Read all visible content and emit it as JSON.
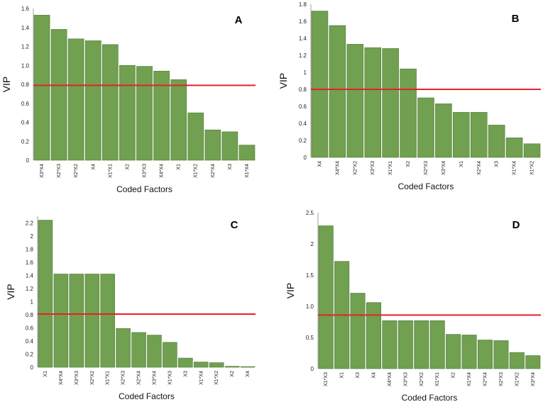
{
  "colors": {
    "bar": "#70a050",
    "bar_edge": "#4d7a33",
    "threshold": "#e8202a"
  },
  "chart_data": [
    {
      "type": "bar",
      "panel": "A",
      "xlabel": "Coded Factors",
      "ylabel": "VIP",
      "ylim": [
        0,
        1.6
      ],
      "yticks": [
        0,
        0.2,
        0.4,
        0.6,
        0.8,
        1.0,
        1.2,
        1.4,
        1.6
      ],
      "ytick_labels": [
        "0",
        "0.2",
        "0.4",
        "0.6",
        "0.8",
        "1.0",
        "1.2",
        "1.4",
        "1.6"
      ],
      "threshold": 0.79,
      "categories": [
        "X3*X4",
        "X2*X3",
        "X2*X2",
        "X4",
        "X1*X1",
        "X2",
        "X3*X3",
        "X4*X4",
        "X1",
        "X1*X2",
        "X2*X4",
        "X3",
        "X1*X4"
      ],
      "values": [
        1.53,
        1.38,
        1.28,
        1.26,
        1.22,
        1.0,
        0.99,
        0.94,
        0.85,
        0.5,
        0.32,
        0.3,
        0.16
      ]
    },
    {
      "type": "bar",
      "panel": "B",
      "xlabel": "Coded Factors",
      "ylabel": "VIP",
      "ylim": [
        0,
        1.8
      ],
      "yticks": [
        0,
        0.2,
        0.4,
        0.6,
        0.8,
        1,
        1.2,
        1.4,
        1.6,
        1.8
      ],
      "ytick_labels": [
        "0",
        "0.2",
        "0.4",
        "0.6",
        "0.8",
        "1",
        "1.2",
        "1.4",
        "1.6",
        "1.8"
      ],
      "threshold": 0.8,
      "categories": [
        "X4",
        "X4*X4",
        "X2*X2",
        "X3*X3",
        "X1*X1",
        "X2",
        "X2*X3",
        "X3*X4",
        "X1",
        "X2*X4",
        "X3",
        "X1*X4",
        "X1*X2"
      ],
      "values": [
        1.72,
        1.55,
        1.33,
        1.29,
        1.28,
        1.04,
        0.7,
        0.63,
        0.53,
        0.53,
        0.38,
        0.23,
        0.16
      ]
    },
    {
      "type": "bar",
      "panel": "C",
      "xlabel": "Coded Factors",
      "ylabel": "VIP",
      "ylim": [
        0,
        2.3
      ],
      "yticks": [
        0,
        0.2,
        0.4,
        0.6,
        0.8,
        1,
        1.2,
        1.4,
        1.6,
        1.8,
        2,
        2.2
      ],
      "ytick_labels": [
        "0",
        "0.2",
        "0.4",
        "0.6",
        "0.8",
        "1",
        "1.2",
        "1.4",
        "1.6",
        "1.8",
        "2",
        "2.2"
      ],
      "threshold": 0.81,
      "categories": [
        "X1",
        "X4*X4",
        "X3*X3",
        "X2*X2",
        "X1*X1",
        "X2*X3",
        "X2*X4",
        "X3*X4",
        "X1*X3",
        "X3",
        "X1*X4",
        "X1*X2",
        "X2",
        "X4"
      ],
      "values": [
        2.24,
        1.42,
        1.42,
        1.42,
        1.42,
        0.59,
        0.53,
        0.49,
        0.38,
        0.14,
        0.08,
        0.07,
        0.015,
        0.01
      ]
    },
    {
      "type": "bar",
      "panel": "D",
      "xlabel": "Coded Factors",
      "ylabel": "VIP",
      "ylim": [
        0,
        2.5
      ],
      "yticks": [
        0,
        0.5,
        1.0,
        1.5,
        2,
        2.5
      ],
      "ytick_labels": [
        "0",
        "0.5",
        "1.0",
        "1.5",
        "2",
        "2.5"
      ],
      "threshold": 0.86,
      "categories": [
        "X1*X3",
        "X1",
        "X3",
        "X4",
        "X4*X4",
        "X3*X3",
        "X2*X2",
        "X1*X1",
        "X2",
        "X1*X4",
        "X2*X4",
        "X2*X3",
        "X1*X2",
        "X3*X4"
      ],
      "values": [
        2.29,
        1.72,
        1.21,
        1.06,
        0.77,
        0.77,
        0.77,
        0.77,
        0.55,
        0.54,
        0.46,
        0.45,
        0.26,
        0.21
      ]
    }
  ]
}
